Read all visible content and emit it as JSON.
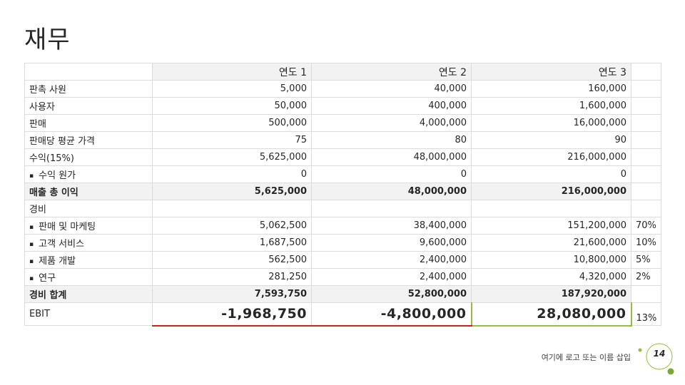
{
  "title": "재무",
  "table": {
    "headers": [
      "",
      "연도 1",
      "연도 2",
      "연도 3",
      ""
    ],
    "rows": [
      {
        "label": "판촉 사원",
        "y1": "5,000",
        "y2": "40,000",
        "y3": "160,000",
        "pct": ""
      },
      {
        "label": "사용자",
        "y1": "50,000",
        "y2": "400,000",
        "y3": "1,600,000",
        "pct": ""
      },
      {
        "label": "판매",
        "y1": "500,000",
        "y2": "4,000,000",
        "y3": "16,000,000",
        "pct": ""
      },
      {
        "label": "판매당 평균 가격",
        "y1": "75",
        "y2": "80",
        "y3": "90",
        "pct": ""
      },
      {
        "label": "수익(15%)",
        "y1": "5,625,000",
        "y2": "48,000,000",
        "y3": "216,000,000",
        "pct": ""
      },
      {
        "label": "수익 원가",
        "y1": "0",
        "y2": "0",
        "y3": "0",
        "pct": ""
      },
      {
        "label": "매출 총 이익",
        "y1": "5,625,000",
        "y2": "48,000,000",
        "y3": "216,000,000",
        "pct": ""
      },
      {
        "label": "경비",
        "y1": "",
        "y2": "",
        "y3": "",
        "pct": ""
      },
      {
        "label": "판매 및 마케팅",
        "y1": "5,062,500",
        "y2": "38,400,000",
        "y3": "151,200,000",
        "pct": "70%"
      },
      {
        "label": "고객 서비스",
        "y1": "1,687,500",
        "y2": "9,600,000",
        "y3": "21,600,000",
        "pct": "10%"
      },
      {
        "label": "제품 개발",
        "y1": "562,500",
        "y2": "2,400,000",
        "y3": "10,800,000",
        "pct": "5%"
      },
      {
        "label": "연구",
        "y1": "281,250",
        "y2": "2,400,000",
        "y3": "4,320,000",
        "pct": "2%"
      },
      {
        "label": "경비 합계",
        "y1": "7,593,750",
        "y2": "52,800,000",
        "y3": "187,920,000",
        "pct": ""
      },
      {
        "label": "EBIT",
        "y1": "-1,968,750",
        "y2": "-4,800,000",
        "y3": "28,080,000",
        "pct": "13%"
      }
    ]
  },
  "bullet_char": "▪",
  "footer": "여기에 로고 또는 이름 삽입",
  "page_number": "14",
  "colors": {
    "accent_green": "#92c03e",
    "negative_red": "#cc2222",
    "header_fill": "#f2f2f2"
  }
}
